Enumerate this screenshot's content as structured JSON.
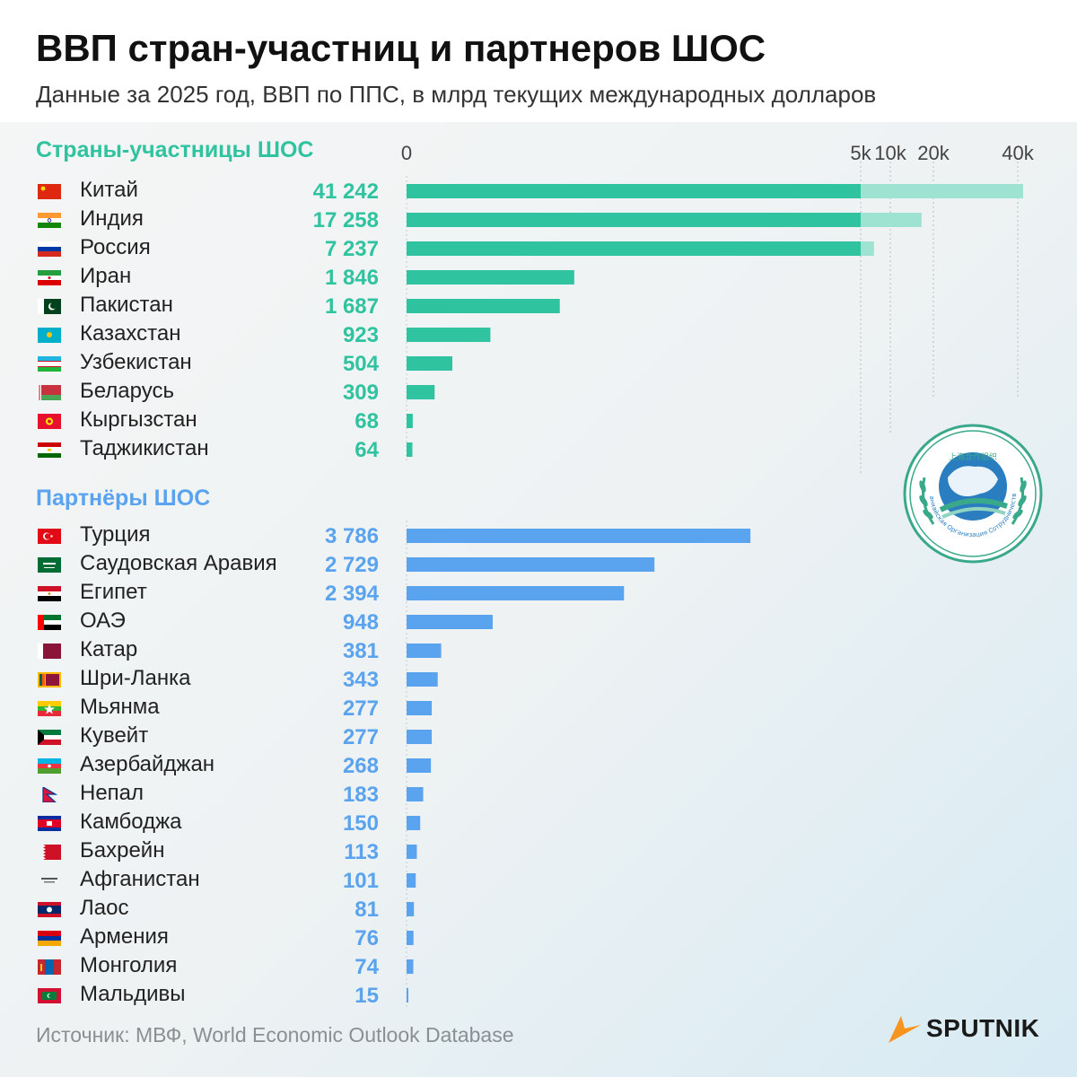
{
  "title": "ВВП стран-участниц и партнеров ШОС",
  "subtitle": "Данные за 2025 год, ВВП по ППС, в млрд текущих международных долларов",
  "source": "Источник: МВФ, World Economic Outlook Database",
  "brand": "SPUTNIK",
  "colors": {
    "members": "#2fc3a0",
    "members_light": "#9ee3d2",
    "partners": "#5aa3ee",
    "brand_accent": "#f7941d"
  },
  "chart_data": {
    "type": "bar",
    "orientation": "horizontal",
    "title": "ВВП стран-участниц и партнеров ШОС",
    "subtitle": "Данные за 2025 год, ВВП по ППС, в млрд текущих международных долларов",
    "x_scale": "piecewise: linear 0–5000, compressed above 5000",
    "xlim": [
      0,
      42000
    ],
    "x_ticks": [
      "0",
      "5k",
      "10k",
      "20k",
      "40k"
    ],
    "x_tick_values": [
      0,
      5000,
      10000,
      20000,
      40000
    ],
    "grid": "vertical dashed at 5k, 10k, 20k, 40k",
    "series": [
      {
        "name": "Страны-участницы ШОС",
        "color": "#2fc3a0",
        "categories": [
          "Китай",
          "Индия",
          "Россия",
          "Иран",
          "Пакистан",
          "Казахстан",
          "Узбекистан",
          "Беларусь",
          "Кыргызстан",
          "Таджикистан"
        ],
        "values": [
          41242,
          17258,
          7237,
          1846,
          1687,
          923,
          504,
          309,
          68,
          64
        ],
        "labels": [
          "41 242",
          "17 258",
          "7 237",
          "1 846",
          "1 687",
          "923",
          "504",
          "309",
          "68",
          "64"
        ],
        "flags": [
          "china-flag-icon",
          "india-flag-icon",
          "russia-flag-icon",
          "iran-flag-icon",
          "pakistan-flag-icon",
          "kazakhstan-flag-icon",
          "uzbekistan-flag-icon",
          "belarus-flag-icon",
          "kyrgyzstan-flag-icon",
          "tajikistan-flag-icon"
        ]
      },
      {
        "name": "Партнёры ШОС",
        "color": "#5aa3ee",
        "categories": [
          "Турция",
          "Саудовская Аравия",
          "Египет",
          "ОАЭ",
          "Катар",
          "Шри-Ланка",
          "Мьянма",
          "Кувейт",
          "Азербайджан",
          "Непал",
          "Камбоджа",
          "Бахрейн",
          "Афганистан",
          "Лаос",
          "Армения",
          "Монголия",
          "Мальдивы"
        ],
        "values": [
          3786,
          2729,
          2394,
          948,
          381,
          343,
          277,
          277,
          268,
          183,
          150,
          113,
          101,
          81,
          76,
          74,
          15
        ],
        "labels": [
          "3 786",
          "2 729",
          "2 394",
          "948",
          "381",
          "343",
          "277",
          "277",
          "268",
          "183",
          "150",
          "113",
          "101",
          "81",
          "76",
          "74",
          "15"
        ],
        "flags": [
          "turkey-flag-icon",
          "saudi-arabia-flag-icon",
          "egypt-flag-icon",
          "uae-flag-icon",
          "qatar-flag-icon",
          "sri-lanka-flag-icon",
          "myanmar-flag-icon",
          "kuwait-flag-icon",
          "azerbaijan-flag-icon",
          "nepal-flag-icon",
          "cambodia-flag-icon",
          "bahrain-flag-icon",
          "afghanistan-flag-icon",
          "laos-flag-icon",
          "armenia-flag-icon",
          "mongolia-flag-icon",
          "maldives-flag-icon"
        ]
      }
    ]
  },
  "emblem": {
    "icon": "sco-emblem-icon",
    "inscription": "Шанхайская Организация Сотрудничества",
    "chinese": "上海合作组织"
  }
}
